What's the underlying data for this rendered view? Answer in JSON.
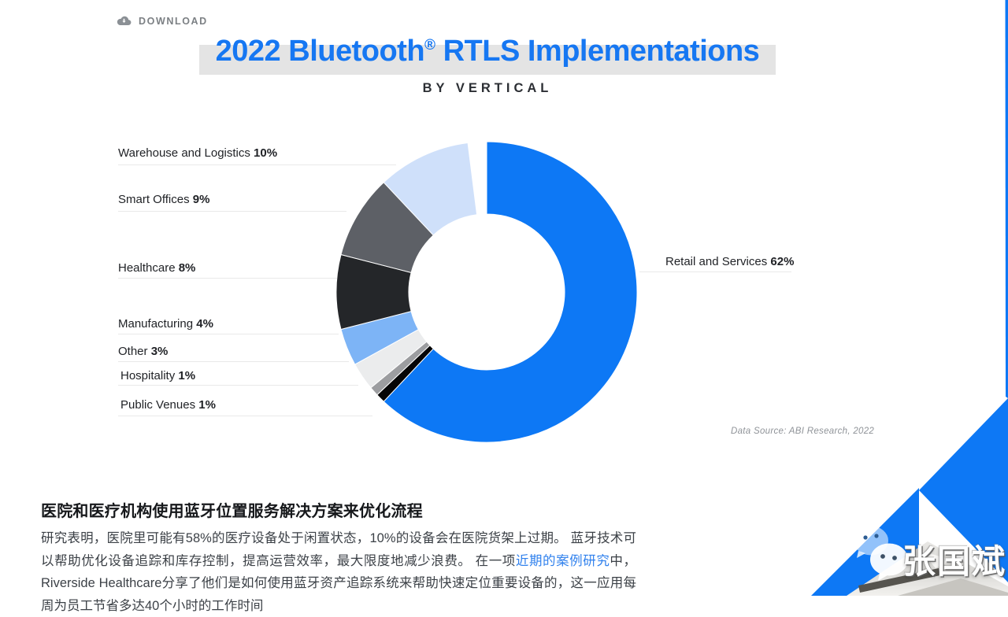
{
  "page": {
    "download_label": "DOWNLOAD",
    "title_pre": "2022 Bluetooth",
    "title_reg": "®",
    "title_post": " RTLS Implementations",
    "subtitle": "BY VERTICAL",
    "source_note": "Data Source: ABI Research, 2022"
  },
  "chart_data": {
    "type": "pie",
    "variant": "donut",
    "title": "2022 Bluetooth® RTLS Implementations",
    "subtitle": "BY VERTICAL",
    "unit": "percent",
    "start_angle_deg": 0,
    "direction": "clockwise",
    "source": "Data Source: ABI Research, 2022",
    "segments": [
      {
        "label": "Retail and Services",
        "value": 62,
        "color": "#0d78f5"
      },
      {
        "label": "Public Venues",
        "value": 1,
        "color": "#050506"
      },
      {
        "label": "Hospitality",
        "value": 1,
        "color": "#9c9da0"
      },
      {
        "label": "Other",
        "value": 3,
        "color": "#ebeced"
      },
      {
        "label": "Manufacturing",
        "value": 4,
        "color": "#7db4f6"
      },
      {
        "label": "Healthcare",
        "value": 8,
        "color": "#242629"
      },
      {
        "label": "Smart Offices",
        "value": 9,
        "color": "#5d6066"
      },
      {
        "label": "Warehouse and Logistics",
        "value": 10,
        "color": "#cfe0fa"
      }
    ]
  },
  "labels": {
    "left": [
      {
        "name": "Warehouse and Logistics",
        "pct": "10%"
      },
      {
        "name": "Smart Offices",
        "pct": "9%"
      },
      {
        "name": "Healthcare",
        "pct": "8%"
      },
      {
        "name": "Manufacturing",
        "pct": "4%"
      },
      {
        "name": "Other",
        "pct": "3%"
      },
      {
        "name": "Hospitality",
        "pct": "1%"
      },
      {
        "name": "Public Venues",
        "pct": "1%"
      }
    ],
    "right": {
      "name": "Retail and Services",
      "pct": "62%"
    }
  },
  "article": {
    "heading": "医院和医疗机构使用蓝牙位置服务解决方案来优化流程",
    "para_before": "研究表明，医院里可能有58%的医疗设备处于闲置状态，10%的设备会在医院货架上过期。 蓝牙技术可以帮助优化设备追踪和库存控制，提高运营效率，最大限度地减少浪费。 在一项",
    "link_text": "近期的案例研究",
    "para_after": "中，Riverside Healthcare分享了他们是如何使用蓝牙资产追踪系统来帮助快速定位重要设备的，这一应用每周为员工节省多达40个小时的工作时间"
  },
  "watermark": {
    "name": "张国斌"
  },
  "colors": {
    "accent_blue": "#0d78f5",
    "title_blue": "#1677f2",
    "title_band_gray": "#e4e4e4",
    "leader_line": "#e9e9e9",
    "link_blue": "#2f80ed"
  }
}
